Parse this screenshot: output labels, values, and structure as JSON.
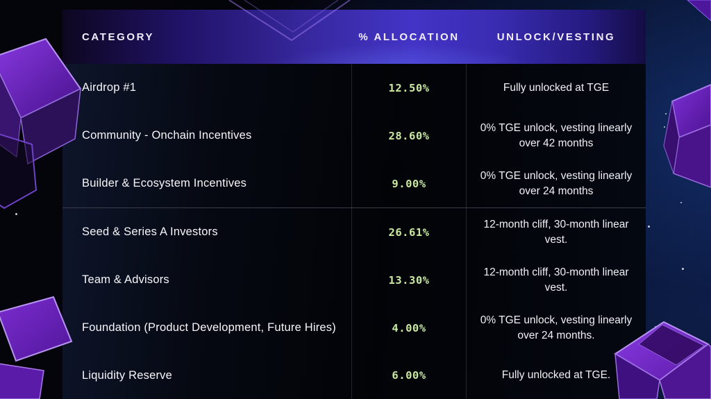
{
  "table": {
    "headers": [
      "CATEGORY",
      "% ALLOCATION",
      "UNLOCK/VESTING"
    ],
    "rows": [
      {
        "category": "Airdrop #1",
        "allocation": "12.50%",
        "vesting": "Fully unlocked at TGE"
      },
      {
        "category": "Community - Onchain Incentives",
        "allocation": "28.60%",
        "vesting": "0% TGE unlock, vesting linearly over 42 months"
      },
      {
        "category": "Builder & Ecosystem Incentives",
        "allocation": "9.00%",
        "vesting": "0% TGE unlock, vesting linearly over 24 months"
      },
      {
        "category": "Seed & Series A Investors",
        "allocation": "26.61%",
        "vesting": "12-month cliff, 30-month linear vest."
      },
      {
        "category": "Team & Advisors",
        "allocation": "13.30%",
        "vesting": "12-month cliff, 30-month linear vest."
      },
      {
        "category": "Foundation (Product Development, Future Hires)",
        "allocation": "4.00%",
        "vesting": "0% TGE unlock, vesting linearly over 24 months."
      },
      {
        "category": "Liquidity Reserve",
        "allocation": "6.00%",
        "vesting": "Fully unlocked at TGE."
      }
    ],
    "divider_after_row": 3
  },
  "chart_data": {
    "type": "table",
    "columns": [
      "CATEGORY",
      "% ALLOCATION",
      "UNLOCK/VESTING"
    ],
    "rows": [
      [
        "Airdrop #1",
        12.5,
        "Fully unlocked at TGE"
      ],
      [
        "Community - Onchain Incentives",
        28.6,
        "0% TGE unlock, vesting linearly over 42 months"
      ],
      [
        "Builder & Ecosystem Incentives",
        9.0,
        "0% TGE unlock, vesting linearly over 24 months"
      ],
      [
        "Seed & Series A Investors",
        26.61,
        "12-month cliff, 30-month linear vest."
      ],
      [
        "Team & Advisors",
        13.3,
        "12-month cliff, 30-month linear vest."
      ],
      [
        "Foundation (Product Development, Future Hires)",
        4.0,
        "0% TGE unlock, vesting linearly over 24 months."
      ],
      [
        "Liquidity Reserve",
        6.0,
        "Fully unlocked at TGE."
      ]
    ],
    "allocation_unit": "%",
    "group_divider_after_row_index": 2,
    "legend_position": "none",
    "grid": "column-dividers"
  },
  "colors": {
    "allocation_text": "#c9e8a2",
    "header_purple": "#4334c6",
    "body_text": "#f0f1f6",
    "cube_purple": "#7a2fd0",
    "background_blue": "#0a1632",
    "divider_gray": "#3d3d4a"
  }
}
